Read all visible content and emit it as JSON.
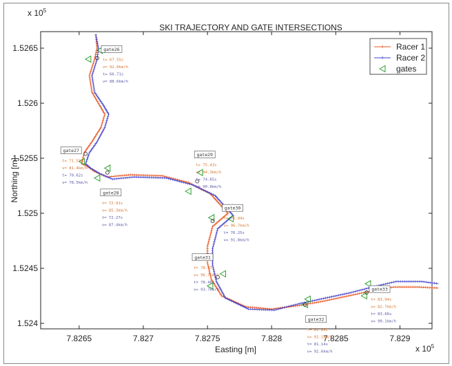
{
  "chart_data": {
    "type": "line",
    "title": "SKI TRAJECTORY AND GATE INTERSECTIONS",
    "xlabel": "Easting [m]",
    "ylabel": "Northing [m]",
    "x_exponent": "x 10",
    "x_exponent_power": "5",
    "y_exponent": "x 10",
    "y_exponent_power": "5",
    "xlim": [
      7.8262,
      7.82925
    ],
    "ylim": [
      1.52395,
      1.52665
    ],
    "x_ticks": [
      7.8265,
      7.827,
      7.8275,
      7.828,
      7.8285,
      7.829
    ],
    "x_tick_labels": [
      "7.8265",
      "7.827",
      "7.8275",
      "7.828",
      "7.8285",
      "7.829"
    ],
    "y_ticks": [
      1.524,
      1.5245,
      1.525,
      1.5255,
      1.526,
      1.5265
    ],
    "y_tick_labels": [
      "1.524",
      "1.5245",
      "1.525",
      "1.5255",
      "1.526",
      "1.5265"
    ],
    "grid": false,
    "legend_position": "top-right",
    "colors": {
      "racer1": "#e8541f",
      "racer2": "#4040c8",
      "gates": "#2e9e2e",
      "ann_r1": "#d8742c",
      "ann_r2": "#5a5aa8"
    },
    "series": [
      {
        "name": "Racer 1",
        "color": "#e8541f",
        "marker": "+",
        "x": [
          7.82663,
          7.82664,
          7.82662,
          7.82658,
          7.8266,
          7.82666,
          7.8267,
          7.82667,
          7.8266,
          7.82654,
          7.82652,
          7.82656,
          7.82662,
          7.82672,
          7.8269,
          7.82715,
          7.82735,
          7.82752,
          7.82766,
          7.82754,
          7.8275,
          7.8275,
          7.82753,
          7.82761,
          7.8278,
          7.828,
          7.8282,
          7.8284,
          7.8286,
          7.8288,
          7.82895,
          7.82915,
          7.8293
        ],
        "y": [
          1.52662,
          1.5265,
          1.5264,
          1.52625,
          1.5261,
          1.52598,
          1.5259,
          1.52578,
          1.52565,
          1.52555,
          1.52545,
          1.52543,
          1.52538,
          1.52533,
          1.52535,
          1.52534,
          1.52528,
          1.52518,
          1.525,
          1.52488,
          1.5247,
          1.52455,
          1.5244,
          1.52425,
          1.52415,
          1.52413,
          1.52416,
          1.5242,
          1.52425,
          1.5243,
          1.52433,
          1.52433,
          1.52432
        ]
      },
      {
        "name": "Racer 2",
        "color": "#4040c8",
        "marker": "+",
        "x": [
          7.82663,
          7.82665,
          7.82664,
          7.8266,
          7.82662,
          7.82669,
          7.82673,
          7.8267,
          7.82664,
          7.82658,
          7.82655,
          7.82659,
          7.82666,
          7.82676,
          7.82693,
          7.82718,
          7.82738,
          7.82756,
          7.8277,
          7.82758,
          7.82754,
          7.82754,
          7.82757,
          7.82764,
          7.82782,
          7.82802,
          7.82822,
          7.82842,
          7.82862,
          7.82882,
          7.82897,
          7.82917,
          7.8293
        ],
        "y": [
          1.52662,
          1.5265,
          1.5264,
          1.52625,
          1.5261,
          1.52598,
          1.5259,
          1.52578,
          1.52565,
          1.52555,
          1.52545,
          1.52541,
          1.52536,
          1.52531,
          1.52533,
          1.52532,
          1.52526,
          1.52516,
          1.52498,
          1.52486,
          1.52468,
          1.52453,
          1.52438,
          1.52423,
          1.52413,
          1.52412,
          1.52418,
          1.52423,
          1.52428,
          1.52434,
          1.52438,
          1.52438,
          1.52436
        ]
      }
    ],
    "gate_markers": {
      "name": "gates",
      "color": "#2e9e2e",
      "marker": "left-triangle",
      "x": [
        7.82666,
        7.82657,
        7.82652,
        7.82672,
        7.82664,
        7.82744,
        7.82735,
        7.82753,
        7.82768,
        7.82752,
        7.82762,
        7.82826,
        7.82828,
        7.82872,
        7.82875
      ],
      "y": [
        1.52648,
        1.5264,
        1.52547,
        1.52541,
        1.52532,
        1.52537,
        1.5252,
        1.52496,
        1.52495,
        1.52434,
        1.52445,
        1.52417,
        1.52422,
        1.52425,
        1.52436
      ]
    },
    "gates": [
      {
        "name": "gate26",
        "x": 7.82664,
        "y": 1.52641,
        "lines": [
          "t= 67.55s",
          "v= 92.0km/h",
          "t= 66.71s",
          "v= 88.6km/h"
        ]
      },
      {
        "name": "gate27",
        "x": 7.82655,
        "y": 1.52554,
        "lines": [
          "t= 71.53s",
          "v= 81.4km/h",
          "t= 70.62s",
          "v= 78.5km/h"
        ]
      },
      {
        "name": "gate28",
        "x": 7.82672,
        "y": 1.52537,
        "lines": [
          "t= 72.91s",
          "v= 85.3km/h",
          "t= 72.27s",
          "v= 87.4km/h"
        ]
      },
      {
        "name": "gate29",
        "x": 7.82742,
        "y": 1.52529,
        "lines": [
          "t= 75.43s",
          "v= 94.3km/h",
          "t= 74.65s",
          "v= 90.8km/h"
        ]
      },
      {
        "name": "gate30",
        "x": 7.82754,
        "y": 1.52493,
        "lines": [
          "t= 76.94s",
          "v= 96.7km/h",
          "t= 76.25s",
          "v= 91.8km/h"
        ]
      },
      {
        "name": "gate31",
        "x": 7.82758,
        "y": 1.52442,
        "lines": [
          "t= 78.97s",
          "v= 96.7km/h",
          "t= 78.48s",
          "v= 93.7km/h"
        ]
      },
      {
        "name": "gate32",
        "x": 7.82826,
        "y": 1.52417,
        "lines": [
          "t= 81.89s",
          "v= 91.1km/h",
          "t= 81.14s",
          "v= 92.6km/h"
        ]
      },
      {
        "name": "gate33",
        "x": 7.82874,
        "y": 1.52428,
        "lines": [
          "t= 83.94s",
          "v= 82.7km/h",
          "t= 83.66s",
          "v= 90.1km/h"
        ]
      }
    ]
  }
}
